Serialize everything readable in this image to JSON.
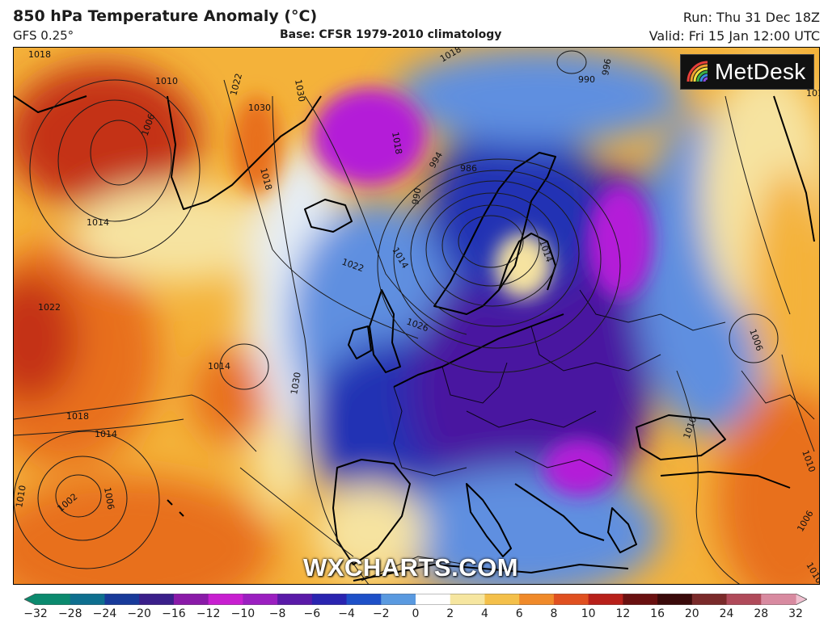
{
  "header": {
    "title": "850 hPa Temperature Anomaly (°C)",
    "model": "GFS 0.25°",
    "base": "Base: CFSR 1979-2010 climatology",
    "run": "Run: Thu 31 Dec 18Z",
    "valid": "Valid: Fri 15 Jan 12:00 UTC"
  },
  "branding": {
    "logo_text": "MetDesk",
    "watermark": "WXCHARTS.COM"
  },
  "colorbar": {
    "ticks": [
      "−32",
      "−28",
      "−24",
      "−20",
      "−16",
      "−12",
      "−10",
      "−8",
      "−6",
      "−4",
      "−2",
      "0",
      "2",
      "4",
      "6",
      "8",
      "10",
      "12",
      "16",
      "20",
      "24",
      "28",
      "32"
    ],
    "colors": [
      "#0b8a6e",
      "#0e6f8f",
      "#183a9a",
      "#3a1f8a",
      "#8a1aa8",
      "#c81fd0",
      "#9b1fc0",
      "#5a1aa8",
      "#2a24b0",
      "#1e50c8",
      "#5a9ae0",
      "#ffffff",
      "#f6e6a0",
      "#f4c04a",
      "#f08a2a",
      "#e05020",
      "#b8201a",
      "#6a1010",
      "#3a0a0a",
      "#7a2a2a",
      "#b04a5a",
      "#d88aa0",
      "#f0c0d0"
    ]
  },
  "map": {
    "colors": {
      "ocean_warm": "#e8701e",
      "very_warm": "#c43218",
      "warm": "#f4b23a",
      "mild": "#f6e3a0",
      "near_zero": "#e6eef6",
      "cool": "#5e8fe0",
      "cold": "#2232b4",
      "very_cold": "#4a12a0",
      "extreme_cold": "#b41ed8",
      "land": "#000000"
    },
    "isobar_labels": [
      "1018",
      "1010",
      "1006",
      "1014",
      "1022",
      "1030",
      "1030",
      "1018",
      "990",
      "994",
      "986",
      "990",
      "996",
      "1014",
      "1018",
      "1018",
      "1022",
      "1026",
      "1014",
      "1014",
      "1010",
      "1006",
      "1006",
      "1030",
      "1022",
      "1018",
      "1014",
      "1010",
      "1002",
      "1006",
      "1010",
      "1014",
      "1010"
    ]
  }
}
